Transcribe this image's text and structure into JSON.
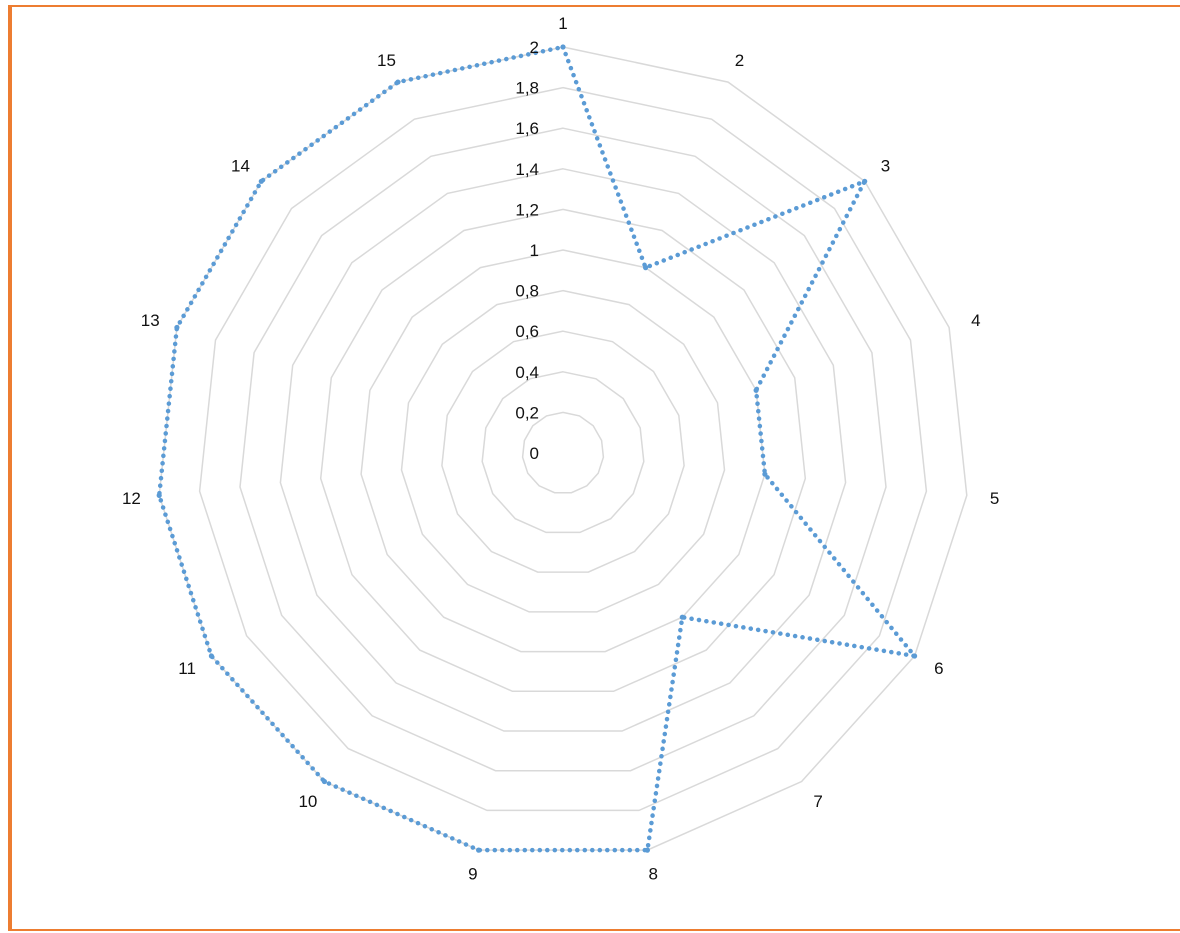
{
  "chart_data": {
    "type": "radar",
    "categories": [
      "1",
      "2",
      "3",
      "4",
      "5",
      "6",
      "7",
      "8",
      "9",
      "10",
      "11",
      "12",
      "13",
      "14",
      "15"
    ],
    "series": [
      {
        "values": [
          2,
          1,
          2,
          1,
          1,
          2,
          1,
          2,
          2,
          2,
          2,
          2,
          2,
          2,
          2
        ]
      }
    ],
    "rlim": [
      0,
      2
    ],
    "rticks": [
      "0",
      "0,2",
      "0,4",
      "0,6",
      "0,8",
      "1",
      "1,2",
      "1,4",
      "1,6",
      "1,8",
      "2"
    ],
    "grid": true,
    "legend": "none",
    "colors": {
      "series": "#5B9BD5",
      "grid": "#D9D9D9",
      "frame": "#ED7D31"
    }
  }
}
